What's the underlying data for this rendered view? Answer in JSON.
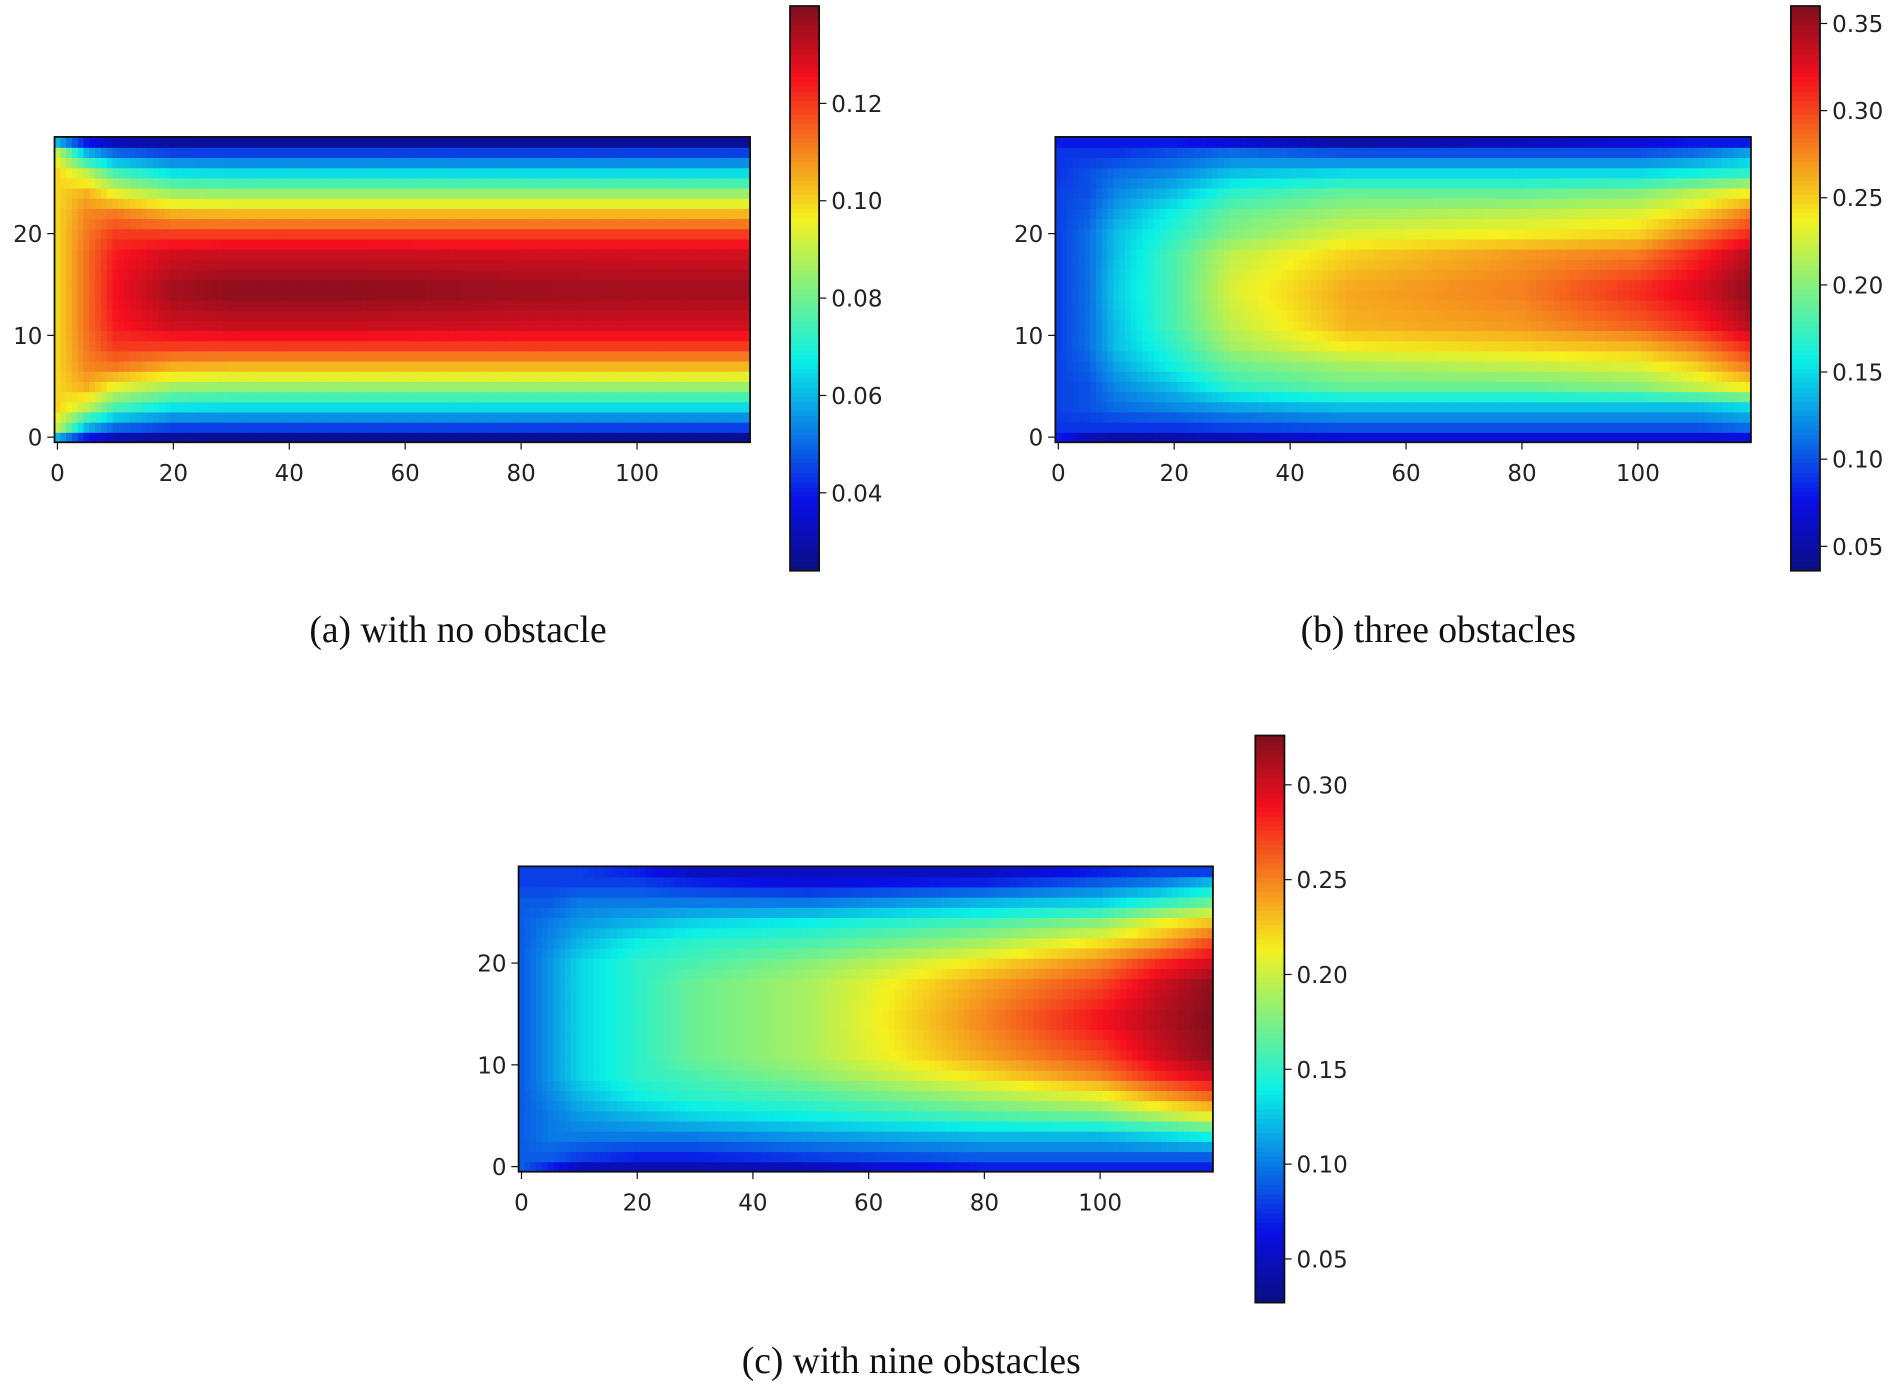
{
  "chart_data": [
    {
      "type": "heatmap",
      "caption": "(a) with no obstacle",
      "colormap": "jet",
      "xticks": [
        "0",
        "20",
        "40",
        "60",
        "80",
        "100"
      ],
      "yticks": [
        "0",
        "10",
        "20"
      ],
      "xlim": [
        -0.5,
        119.5
      ],
      "ylim": [
        -0.5,
        29.5
      ],
      "colorbar": {
        "range": [
          0.024,
          0.14
        ],
        "ticks": [
          "0.04",
          "0.06",
          "0.08",
          "0.10",
          "0.12"
        ]
      },
      "grid": {
        "x": [
          0,
          5,
          10,
          20,
          30,
          50,
          80,
          100,
          110,
          119
        ],
        "y": [
          0,
          1,
          3,
          5,
          7,
          9,
          11,
          14.5,
          18,
          20,
          22,
          24,
          26,
          28,
          29
        ],
        "z": [
          [
            0.06,
            0.04,
            0.032,
            0.028,
            0.027,
            0.027,
            0.027,
            0.027,
            0.027,
            0.027
          ],
          [
            0.09,
            0.06,
            0.05,
            0.045,
            0.045,
            0.045,
            0.045,
            0.045,
            0.045,
            0.045
          ],
          [
            0.1,
            0.09,
            0.075,
            0.066,
            0.065,
            0.065,
            0.065,
            0.065,
            0.065,
            0.065
          ],
          [
            0.1,
            0.105,
            0.095,
            0.086,
            0.085,
            0.085,
            0.085,
            0.085,
            0.085,
            0.085
          ],
          [
            0.1,
            0.11,
            0.112,
            0.105,
            0.104,
            0.104,
            0.104,
            0.104,
            0.104,
            0.104
          ],
          [
            0.1,
            0.112,
            0.12,
            0.12,
            0.12,
            0.12,
            0.12,
            0.12,
            0.12,
            0.12
          ],
          [
            0.1,
            0.113,
            0.124,
            0.13,
            0.131,
            0.131,
            0.13,
            0.13,
            0.13,
            0.13
          ],
          [
            0.1,
            0.113,
            0.126,
            0.136,
            0.139,
            0.139,
            0.137,
            0.136,
            0.136,
            0.136
          ],
          [
            0.1,
            0.113,
            0.124,
            0.13,
            0.131,
            0.131,
            0.13,
            0.13,
            0.13,
            0.13
          ],
          [
            0.1,
            0.112,
            0.12,
            0.12,
            0.12,
            0.12,
            0.12,
            0.12,
            0.12,
            0.12
          ],
          [
            0.1,
            0.11,
            0.112,
            0.105,
            0.104,
            0.104,
            0.104,
            0.104,
            0.104,
            0.104
          ],
          [
            0.1,
            0.105,
            0.095,
            0.086,
            0.085,
            0.085,
            0.085,
            0.085,
            0.085,
            0.085
          ],
          [
            0.1,
            0.09,
            0.075,
            0.066,
            0.065,
            0.065,
            0.065,
            0.065,
            0.065,
            0.065
          ],
          [
            0.09,
            0.06,
            0.05,
            0.045,
            0.045,
            0.045,
            0.045,
            0.045,
            0.045,
            0.045
          ],
          [
            0.06,
            0.04,
            0.032,
            0.028,
            0.027,
            0.027,
            0.027,
            0.027,
            0.027,
            0.027
          ]
        ]
      }
    },
    {
      "type": "heatmap",
      "caption": "(b) three obstacles",
      "colormap": "jet",
      "xticks": [
        "0",
        "20",
        "40",
        "60",
        "80",
        "100"
      ],
      "yticks": [
        "0",
        "10",
        "20"
      ],
      "xlim": [
        -0.5,
        119.5
      ],
      "ylim": [
        -0.5,
        29.5
      ],
      "colorbar": {
        "range": [
          0.036,
          0.36
        ],
        "ticks": [
          "0.05",
          "0.10",
          "0.15",
          "0.20",
          "0.25",
          "0.30",
          "0.35"
        ]
      },
      "grid": {
        "x": [
          0,
          5,
          10,
          20,
          30,
          50,
          80,
          100,
          110,
          119
        ],
        "y": [
          0,
          1,
          3,
          5,
          7,
          9,
          11,
          14.5,
          18,
          20,
          22,
          24,
          26,
          28,
          29
        ],
        "z": [
          [
            0.08,
            0.06,
            0.05,
            0.055,
            0.06,
            0.07,
            0.07,
            0.07,
            0.07,
            0.075
          ],
          [
            0.09,
            0.09,
            0.09,
            0.09,
            0.095,
            0.1,
            0.1,
            0.1,
            0.1,
            0.11
          ],
          [
            0.095,
            0.1,
            0.11,
            0.12,
            0.13,
            0.14,
            0.14,
            0.14,
            0.14,
            0.15
          ],
          [
            0.095,
            0.1,
            0.12,
            0.14,
            0.17,
            0.19,
            0.19,
            0.2,
            0.22,
            0.24
          ],
          [
            0.095,
            0.105,
            0.13,
            0.16,
            0.19,
            0.21,
            0.22,
            0.23,
            0.25,
            0.28
          ],
          [
            0.095,
            0.11,
            0.14,
            0.17,
            0.21,
            0.24,
            0.25,
            0.26,
            0.28,
            0.31
          ],
          [
            0.095,
            0.11,
            0.14,
            0.18,
            0.22,
            0.26,
            0.27,
            0.29,
            0.31,
            0.34
          ],
          [
            0.095,
            0.11,
            0.145,
            0.18,
            0.23,
            0.265,
            0.28,
            0.31,
            0.33,
            0.355
          ],
          [
            0.095,
            0.11,
            0.14,
            0.18,
            0.22,
            0.25,
            0.27,
            0.28,
            0.31,
            0.34
          ],
          [
            0.095,
            0.11,
            0.14,
            0.17,
            0.2,
            0.23,
            0.24,
            0.25,
            0.28,
            0.31
          ],
          [
            0.095,
            0.105,
            0.13,
            0.16,
            0.19,
            0.21,
            0.22,
            0.23,
            0.25,
            0.28
          ],
          [
            0.095,
            0.1,
            0.12,
            0.14,
            0.17,
            0.19,
            0.19,
            0.2,
            0.22,
            0.24
          ],
          [
            0.09,
            0.1,
            0.11,
            0.12,
            0.14,
            0.15,
            0.15,
            0.15,
            0.16,
            0.17
          ],
          [
            0.09,
            0.09,
            0.09,
            0.1,
            0.11,
            0.1,
            0.1,
            0.1,
            0.11,
            0.13
          ],
          [
            0.08,
            0.08,
            0.08,
            0.08,
            0.07,
            0.05,
            0.06,
            0.07,
            0.08,
            0.08
          ]
        ]
      }
    },
    {
      "type": "heatmap",
      "caption": "(c) with nine obstacles",
      "colormap": "jet",
      "xticks": [
        "0",
        "20",
        "40",
        "60",
        "80",
        "100"
      ],
      "yticks": [
        "0",
        "10",
        "20"
      ],
      "xlim": [
        -0.5,
        119.5
      ],
      "ylim": [
        -0.5,
        29.5
      ],
      "colorbar": {
        "range": [
          0.027,
          0.326
        ],
        "ticks": [
          "0.05",
          "0.10",
          "0.15",
          "0.20",
          "0.25",
          "0.30"
        ]
      },
      "grid": {
        "x": [
          0,
          5,
          10,
          20,
          30,
          50,
          80,
          100,
          110,
          119
        ],
        "y": [
          0,
          1,
          3,
          5,
          7,
          9,
          11,
          14.5,
          18,
          20,
          22,
          24,
          26,
          28,
          29
        ],
        "z": [
          [
            0.09,
            0.07,
            0.05,
            0.045,
            0.045,
            0.05,
            0.07,
            0.07,
            0.07,
            0.07
          ],
          [
            0.09,
            0.09,
            0.08,
            0.07,
            0.07,
            0.08,
            0.09,
            0.09,
            0.09,
            0.09
          ],
          [
            0.09,
            0.1,
            0.1,
            0.1,
            0.1,
            0.11,
            0.12,
            0.12,
            0.13,
            0.14
          ],
          [
            0.09,
            0.1,
            0.11,
            0.12,
            0.13,
            0.14,
            0.16,
            0.17,
            0.19,
            0.21
          ],
          [
            0.09,
            0.105,
            0.12,
            0.14,
            0.15,
            0.16,
            0.19,
            0.21,
            0.24,
            0.26
          ],
          [
            0.09,
            0.11,
            0.13,
            0.15,
            0.16,
            0.18,
            0.22,
            0.25,
            0.28,
            0.3
          ],
          [
            0.09,
            0.11,
            0.13,
            0.15,
            0.17,
            0.19,
            0.24,
            0.27,
            0.3,
            0.32
          ],
          [
            0.09,
            0.11,
            0.13,
            0.15,
            0.17,
            0.19,
            0.25,
            0.29,
            0.31,
            0.325
          ],
          [
            0.09,
            0.11,
            0.13,
            0.15,
            0.17,
            0.19,
            0.24,
            0.27,
            0.3,
            0.32
          ],
          [
            0.09,
            0.11,
            0.13,
            0.15,
            0.16,
            0.18,
            0.22,
            0.25,
            0.28,
            0.3
          ],
          [
            0.09,
            0.105,
            0.12,
            0.14,
            0.15,
            0.16,
            0.19,
            0.22,
            0.24,
            0.27
          ],
          [
            0.09,
            0.1,
            0.11,
            0.12,
            0.13,
            0.14,
            0.16,
            0.18,
            0.21,
            0.23
          ],
          [
            0.09,
            0.09,
            0.1,
            0.1,
            0.1,
            0.1,
            0.12,
            0.13,
            0.15,
            0.17
          ],
          [
            0.08,
            0.08,
            0.08,
            0.08,
            0.07,
            0.06,
            0.07,
            0.09,
            0.1,
            0.12
          ],
          [
            0.08,
            0.08,
            0.08,
            0.07,
            0.05,
            0.05,
            0.05,
            0.07,
            0.08,
            0.08
          ]
        ]
      }
    }
  ]
}
